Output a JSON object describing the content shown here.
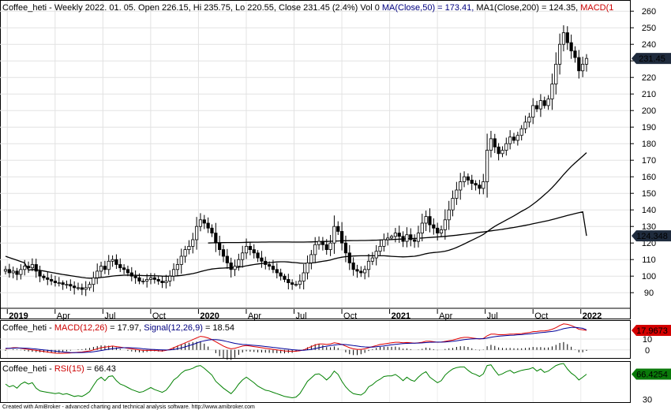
{
  "title_parts": [
    {
      "text": "Coffee_heti - Weekly 2022. 01. 05. Open 226.15, Hi 235.75, Lo 220.55, Close 231.45 (2.4%) Vol 0 ",
      "color": "#000000"
    },
    {
      "text": "MA(Close,50) = 173.41, ",
      "color": "#000080"
    },
    {
      "text": "MA1(Close,200) = 124.35, ",
      "color": "#000000"
    },
    {
      "text": "MACD(1",
      "color": "#cc0000"
    }
  ],
  "macd_title_parts": [
    {
      "text": "Coffee_heti - ",
      "color": "#000000"
    },
    {
      "text": "MACD(12,26)",
      "color": "#cc0000"
    },
    {
      "text": " = 17.97, ",
      "color": "#000000"
    },
    {
      "text": "Signal(12,26,9)",
      "color": "#000080"
    },
    {
      "text": " = 18.54",
      "color": "#000000"
    }
  ],
  "rsi_title_parts": [
    {
      "text": "Coffee_heti - ",
      "color": "#000000"
    },
    {
      "text": "RSI(15)",
      "color": "#cc0000"
    },
    {
      "text": " = 66.43",
      "color": "#000000"
    }
  ],
  "footer": "Created with AmiBroker - advanced charting and technical analysis software. http://www.amibroker.com",
  "chart_data": {
    "type": "candlestick",
    "price": {
      "ylim": [
        82,
        262
      ],
      "yticks": [
        90,
        100,
        110,
        120,
        130,
        140,
        150,
        160,
        170,
        180,
        190,
        200,
        210,
        220,
        230,
        240,
        250,
        260
      ],
      "xlabels": [
        {
          "label": "2019",
          "t": 2019.0
        },
        {
          "label": "Apr",
          "t": 2019.25
        },
        {
          "label": "Jul",
          "t": 2019.5
        },
        {
          "label": "Oct",
          "t": 2019.75
        },
        {
          "label": "2020",
          "t": 2020.0
        },
        {
          "label": "Apr",
          "t": 2020.25
        },
        {
          "label": "Jul",
          "t": 2020.5
        },
        {
          "label": "Oct",
          "t": 2020.75
        },
        {
          "label": "2021",
          "t": 2021.0
        },
        {
          "label": "Apr",
          "t": 2021.25
        },
        {
          "label": "Jul",
          "t": 2021.5
        },
        {
          "label": "Oct",
          "t": 2021.75
        },
        {
          "label": "2022",
          "t": 2022.0
        }
      ],
      "t_range": [
        2018.97,
        2022.03
      ],
      "closes": [
        104,
        102,
        103,
        101,
        104,
        106,
        105,
        107,
        103,
        100,
        99,
        98,
        97,
        96,
        96,
        95,
        95,
        94,
        93,
        93,
        92,
        93,
        95,
        99,
        103,
        106,
        104,
        109,
        110,
        107,
        105,
        104,
        102,
        100,
        99,
        97,
        97,
        98,
        99,
        98,
        97,
        96,
        97,
        100,
        104,
        107,
        112,
        116,
        118,
        122,
        130,
        134,
        132,
        129,
        126,
        120,
        116,
        112,
        108,
        104,
        106,
        110,
        114,
        118,
        116,
        114,
        111,
        109,
        107,
        106,
        104,
        102,
        100,
        98,
        96,
        95,
        95,
        97,
        102,
        108,
        113,
        119,
        121,
        119,
        116,
        120,
        130,
        127,
        120,
        114,
        108,
        104,
        103,
        102,
        104,
        109,
        111,
        115,
        118,
        122,
        123,
        124,
        126,
        124,
        121,
        125,
        122,
        121,
        126,
        132,
        136,
        131,
        129,
        126,
        128,
        134,
        140,
        147,
        152,
        157,
        160,
        158,
        156,
        155,
        153,
        157,
        176,
        183,
        178,
        174,
        176,
        180,
        184,
        182,
        185,
        189,
        193,
        196,
        203,
        201,
        206,
        203,
        207,
        216,
        228,
        240,
        247,
        241,
        236,
        232,
        224,
        228,
        231.45
      ],
      "last": {
        "price": 231.45,
        "label": "231.45"
      },
      "ma1": {
        "value": 124.35,
        "label": "124.348"
      }
    },
    "macd": {
      "ylim": [
        -6,
        26
      ],
      "yticks": [
        0,
        10
      ],
      "last_label": "17.9673",
      "macd": [
        1,
        1.5,
        2,
        2,
        1.5,
        1,
        0.5,
        0,
        -0.5,
        -1,
        -1.5,
        -2,
        -2.5,
        -3,
        -3.2,
        -3.2,
        -3,
        -2.8,
        -2.5,
        -2.2,
        -2,
        -1.5,
        -1,
        0,
        1,
        2,
        2.5,
        3,
        3.5,
        3,
        2.5,
        2,
        1.5,
        1,
        0.5,
        0,
        -0.5,
        -0.5,
        -0.3,
        -0.5,
        -0.8,
        -1,
        -0.5,
        0.5,
        2,
        3.5,
        5,
        6.5,
        8,
        9.5,
        11,
        12.5,
        12,
        11,
        9.5,
        7.5,
        5.5,
        3.5,
        2,
        1,
        1.5,
        2.5,
        3.5,
        4,
        3.5,
        3,
        2.5,
        2,
        1.5,
        1,
        0.5,
        0,
        -0.5,
        -1,
        -1.2,
        -1.5,
        -1.2,
        -0.8,
        0,
        1.5,
        3,
        4.5,
        5.5,
        5.5,
        5,
        5.5,
        6.5,
        6,
        5,
        3.5,
        2,
        1,
        0.5,
        0.5,
        1,
        2,
        3,
        4,
        5,
        5.5,
        6,
        6.5,
        7,
        7,
        6.5,
        6.8,
        6.5,
        6.2,
        6.5,
        7,
        8,
        8,
        7.5,
        7,
        7.2,
        7.8,
        8.5,
        9,
        10,
        11,
        11.5,
        11.5,
        11,
        10.5,
        10,
        10.5,
        13,
        14.5,
        14.5,
        14,
        14,
        14.2,
        14.5,
        14.5,
        14.8,
        15,
        15.5,
        16,
        16.8,
        17,
        17.5,
        17.5,
        18,
        19,
        20.5,
        22.5,
        24,
        23.5,
        22.5,
        21,
        19,
        18.5,
        17.97
      ],
      "signal": [
        1.5,
        1.5,
        1.6,
        1.7,
        1.7,
        1.6,
        1.4,
        1.1,
        0.8,
        0.4,
        0,
        -0.4,
        -0.8,
        -1.2,
        -1.6,
        -1.9,
        -2.2,
        -2.4,
        -2.5,
        -2.5,
        -2.4,
        -2.3,
        -2.1,
        -1.7,
        -1.2,
        -0.6,
        0,
        0.6,
        1.1,
        1.6,
        1.9,
        2,
        2,
        1.9,
        1.7,
        1.4,
        1,
        0.7,
        0.5,
        0.3,
        0.1,
        0,
        -0.1,
        0,
        0.4,
        1,
        1.8,
        2.8,
        3.9,
        5,
        6.3,
        7.5,
        8.4,
        9.1,
        9.5,
        9.4,
        9.1,
        8.5,
        7.7,
        6.8,
        6,
        5.4,
        5,
        4.8,
        4.5,
        4.2,
        3.9,
        3.5,
        3.1,
        2.7,
        2.3,
        1.9,
        1.4,
        1,
        0.6,
        0.2,
        -0.1,
        -0.3,
        -0.3,
        0,
        0.5,
        1.2,
        2,
        2.8,
        3.4,
        4,
        4.5,
        4.9,
        5,
        4.9,
        4.5,
        4,
        3.5,
        3,
        2.7,
        2.6,
        2.6,
        2.9,
        3.3,
        3.7,
        4.2,
        4.7,
        5.1,
        5.5,
        5.8,
        6,
        6.1,
        6.2,
        6.3,
        6.4,
        6.7,
        7,
        7.1,
        7.2,
        7.2,
        7.3,
        7.6,
        7.9,
        8.3,
        8.9,
        9.4,
        9.8,
        10.1,
        10.3,
        10.3,
        10.3,
        10.9,
        11.6,
        12.2,
        12.6,
        12.9,
        13.2,
        13.4,
        13.6,
        13.9,
        14.1,
        14.4,
        14.7,
        15.1,
        15.5,
        15.9,
        16.2,
        16.6,
        17,
        17.6,
        18.5,
        19.5,
        20.2,
        20.7,
        20.8,
        20.4,
        19.9,
        18.54
      ]
    },
    "rsi": {
      "ylim": [
        28,
        82
      ],
      "yticks": [
        30
      ],
      "last_label": "66.4254",
      "values": [
        52,
        48,
        50,
        46,
        52,
        55,
        52,
        54,
        46,
        42,
        41,
        40,
        39,
        38,
        39,
        37,
        38,
        36,
        34,
        35,
        34,
        37,
        41,
        50,
        58,
        62,
        57,
        63,
        64,
        57,
        52,
        50,
        47,
        44,
        42,
        40,
        41,
        44,
        47,
        44,
        42,
        40,
        43,
        50,
        58,
        62,
        68,
        72,
        73,
        75,
        78,
        79,
        75,
        70,
        65,
        56,
        51,
        46,
        42,
        38,
        44,
        52,
        58,
        62,
        58,
        54,
        49,
        46,
        43,
        42,
        40,
        38,
        36,
        34,
        33,
        32,
        33,
        38,
        47,
        56,
        61,
        66,
        67,
        63,
        58,
        63,
        71,
        66,
        56,
        48,
        42,
        38,
        37,
        36,
        40,
        48,
        51,
        56,
        59,
        63,
        64,
        64,
        66,
        62,
        57,
        62,
        58,
        56,
        62,
        67,
        70,
        62,
        58,
        54,
        57,
        65,
        70,
        74,
        76,
        77,
        77,
        72,
        68,
        66,
        63,
        67,
        79,
        80,
        72,
        65,
        67,
        70,
        72,
        68,
        70,
        72,
        73,
        74,
        76,
        71,
        74,
        69,
        71,
        75,
        79,
        81,
        82,
        74,
        68,
        64,
        58,
        62,
        66.43
      ]
    }
  }
}
